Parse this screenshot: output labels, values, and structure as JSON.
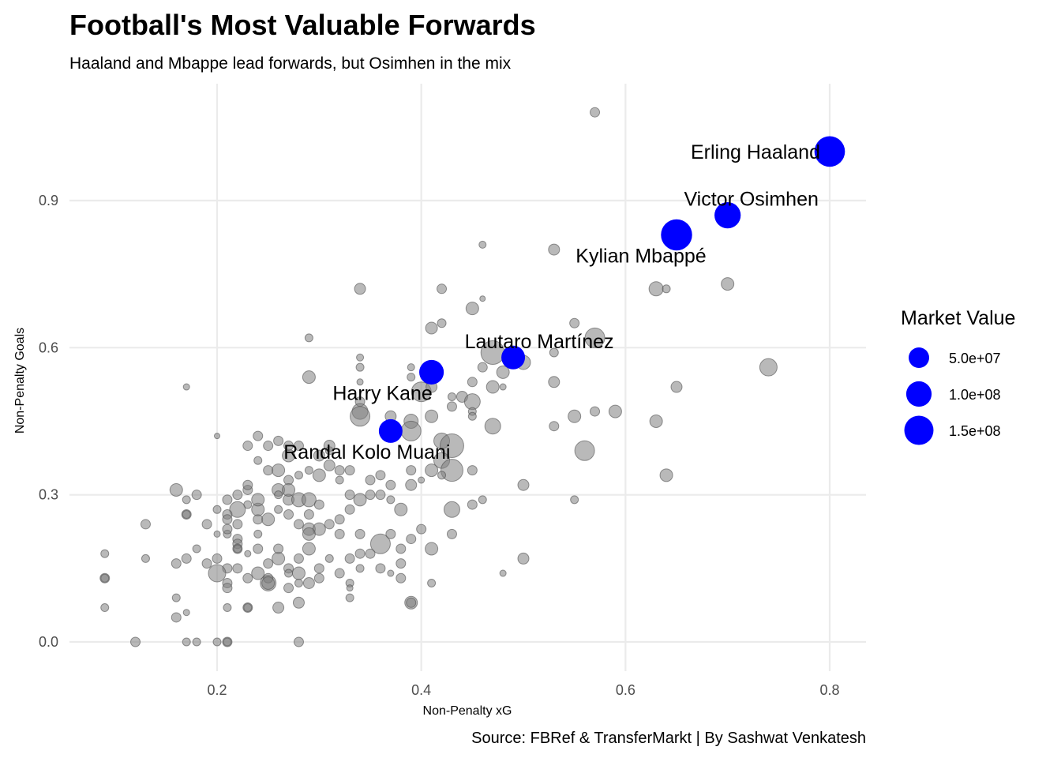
{
  "chart_data": {
    "type": "scatter",
    "title": "Football's Most Valuable Forwards",
    "subtitle": "Haaland and Mbappe lead forwards, but Osimhen in the mix",
    "caption": "Source: FBRef & TransferMarkt | By Sashwat Venkatesh",
    "xlabel": "Non-Penalty xG",
    "ylabel": "Non-Penalty Goals",
    "xlim": [
      0.06,
      0.84
    ],
    "ylim": [
      -0.07,
      1.1
    ],
    "x_ticks": [
      "0.2",
      "0.4",
      "0.6",
      "0.8"
    ],
    "y_ticks": [
      "0.0",
      "0.3",
      "0.6",
      "0.9"
    ],
    "grid": true,
    "legend": {
      "title": "Market Value",
      "position": "right",
      "entries": [
        {
          "label": "5.0e+07",
          "value": 50000000
        },
        {
          "label": "1.0e+08",
          "value": 100000000
        },
        {
          "label": "1.5e+08",
          "value": 150000000
        }
      ]
    },
    "colors": {
      "highlight": "#0000ff",
      "other": "#808080"
    },
    "highlighted": [
      {
        "name": "Erling Haaland",
        "x": 0.8,
        "y": 1.0,
        "value": 170000000
      },
      {
        "name": "Victor Osimhen",
        "x": 0.7,
        "y": 0.87,
        "value": 110000000
      },
      {
        "name": "Kylian Mbappé",
        "x": 0.65,
        "y": 0.83,
        "value": 180000000
      },
      {
        "name": "Lautaro Martínez",
        "x": 0.49,
        "y": 0.58,
        "value": 80000000
      },
      {
        "name": "Harry Kane",
        "x": 0.41,
        "y": 0.55,
        "value": 90000000
      },
      {
        "name": "Randal Kolo Muani",
        "x": 0.37,
        "y": 0.43,
        "value": 80000000
      }
    ],
    "others": [
      [
        0.57,
        1.08,
        12
      ],
      [
        0.46,
        0.81,
        9
      ],
      [
        0.53,
        0.8,
        14
      ],
      [
        0.34,
        0.72,
        14
      ],
      [
        0.42,
        0.72,
        12
      ],
      [
        0.45,
        0.68,
        16
      ],
      [
        0.46,
        0.7,
        7
      ],
      [
        0.41,
        0.64,
        15
      ],
      [
        0.42,
        0.65,
        11
      ],
      [
        0.55,
        0.65,
        12
      ],
      [
        0.57,
        0.62,
        25
      ],
      [
        0.63,
        0.72,
        18
      ],
      [
        0.64,
        0.72,
        10
      ],
      [
        0.7,
        0.73,
        16
      ],
      [
        0.29,
        0.62,
        10
      ],
      [
        0.34,
        0.58,
        9
      ],
      [
        0.34,
        0.56,
        10
      ],
      [
        0.39,
        0.56,
        9
      ],
      [
        0.39,
        0.54,
        10
      ],
      [
        0.47,
        0.59,
        30
      ],
      [
        0.48,
        0.55,
        16
      ],
      [
        0.5,
        0.57,
        18
      ],
      [
        0.53,
        0.59,
        11
      ],
      [
        0.46,
        0.56,
        12
      ],
      [
        0.48,
        0.52,
        8
      ],
      [
        0.45,
        0.53,
        12
      ],
      [
        0.47,
        0.52,
        16
      ],
      [
        0.53,
        0.53,
        14
      ],
      [
        0.65,
        0.52,
        14
      ],
      [
        0.74,
        0.56,
        22
      ],
      [
        0.29,
        0.54,
        16
      ],
      [
        0.34,
        0.53,
        8
      ],
      [
        0.4,
        0.51,
        25
      ],
      [
        0.41,
        0.52,
        14
      ],
      [
        0.43,
        0.5,
        10
      ],
      [
        0.44,
        0.5,
        14
      ],
      [
        0.45,
        0.49,
        20
      ],
      [
        0.43,
        0.48,
        12
      ],
      [
        0.34,
        0.49,
        12
      ],
      [
        0.34,
        0.47,
        20
      ],
      [
        0.34,
        0.46,
        25
      ],
      [
        0.37,
        0.46,
        14
      ],
      [
        0.39,
        0.45,
        18
      ],
      [
        0.41,
        0.46,
        16
      ],
      [
        0.39,
        0.43,
        25
      ],
      [
        0.42,
        0.41,
        20
      ],
      [
        0.43,
        0.4,
        30
      ],
      [
        0.42,
        0.37,
        20
      ],
      [
        0.43,
        0.35,
        28
      ],
      [
        0.41,
        0.35,
        16
      ],
      [
        0.42,
        0.34,
        10
      ],
      [
        0.4,
        0.33,
        8
      ],
      [
        0.45,
        0.47,
        10
      ],
      [
        0.45,
        0.46,
        10
      ],
      [
        0.47,
        0.44,
        20
      ],
      [
        0.53,
        0.44,
        12
      ],
      [
        0.55,
        0.46,
        16
      ],
      [
        0.57,
        0.47,
        12
      ],
      [
        0.59,
        0.47,
        16
      ],
      [
        0.63,
        0.45,
        16
      ],
      [
        0.56,
        0.39,
        25
      ],
      [
        0.64,
        0.34,
        16
      ],
      [
        0.5,
        0.32,
        14
      ],
      [
        0.55,
        0.29,
        10
      ],
      [
        0.46,
        0.29,
        10
      ],
      [
        0.45,
        0.28,
        12
      ],
      [
        0.45,
        0.35,
        12
      ],
      [
        0.43,
        0.27,
        20
      ],
      [
        0.39,
        0.35,
        12
      ],
      [
        0.39,
        0.32,
        14
      ],
      [
        0.38,
        0.27,
        16
      ],
      [
        0.37,
        0.29,
        10
      ],
      [
        0.37,
        0.32,
        12
      ],
      [
        0.36,
        0.34,
        12
      ],
      [
        0.36,
        0.3,
        12
      ],
      [
        0.35,
        0.3,
        12
      ],
      [
        0.35,
        0.33,
        12
      ],
      [
        0.34,
        0.29,
        16
      ],
      [
        0.33,
        0.35,
        12
      ],
      [
        0.33,
        0.3,
        12
      ],
      [
        0.31,
        0.39,
        10
      ],
      [
        0.31,
        0.4,
        14
      ],
      [
        0.31,
        0.36,
        14
      ],
      [
        0.3,
        0.38,
        14
      ],
      [
        0.32,
        0.35,
        12
      ],
      [
        0.32,
        0.33,
        10
      ],
      [
        0.3,
        0.34,
        16
      ],
      [
        0.29,
        0.35,
        10
      ],
      [
        0.28,
        0.34,
        10
      ],
      [
        0.28,
        0.4,
        12
      ],
      [
        0.27,
        0.38,
        16
      ],
      [
        0.27,
        0.4,
        12
      ],
      [
        0.26,
        0.41,
        12
      ],
      [
        0.25,
        0.4,
        12
      ],
      [
        0.24,
        0.42,
        12
      ],
      [
        0.23,
        0.4,
        12
      ],
      [
        0.24,
        0.37,
        10
      ],
      [
        0.25,
        0.35,
        12
      ],
      [
        0.26,
        0.35,
        16
      ],
      [
        0.27,
        0.33,
        12
      ],
      [
        0.27,
        0.29,
        14
      ],
      [
        0.26,
        0.27,
        10
      ],
      [
        0.26,
        0.31,
        16
      ],
      [
        0.27,
        0.31,
        16
      ],
      [
        0.28,
        0.29,
        18
      ],
      [
        0.29,
        0.29,
        18
      ],
      [
        0.3,
        0.28,
        12
      ],
      [
        0.29,
        0.26,
        12
      ],
      [
        0.27,
        0.26,
        12
      ],
      [
        0.28,
        0.24,
        12
      ],
      [
        0.29,
        0.23,
        16
      ],
      [
        0.3,
        0.23,
        16
      ],
      [
        0.31,
        0.24,
        12
      ],
      [
        0.32,
        0.22,
        12
      ],
      [
        0.32,
        0.25,
        12
      ],
      [
        0.33,
        0.27,
        12
      ],
      [
        0.34,
        0.22,
        12
      ],
      [
        0.36,
        0.2,
        25
      ],
      [
        0.35,
        0.18,
        12
      ],
      [
        0.37,
        0.22,
        12
      ],
      [
        0.38,
        0.19,
        12
      ],
      [
        0.39,
        0.21,
        12
      ],
      [
        0.4,
        0.23,
        12
      ],
      [
        0.41,
        0.19,
        16
      ],
      [
        0.43,
        0.22,
        12
      ],
      [
        0.38,
        0.16,
        12
      ],
      [
        0.36,
        0.15,
        12
      ],
      [
        0.39,
        0.08,
        16
      ],
      [
        0.39,
        0.08,
        12
      ],
      [
        0.34,
        0.18,
        12
      ],
      [
        0.34,
        0.15,
        10
      ],
      [
        0.33,
        0.17,
        12
      ],
      [
        0.33,
        0.12,
        10
      ],
      [
        0.33,
        0.11,
        8
      ],
      [
        0.33,
        0.09,
        10
      ],
      [
        0.32,
        0.14,
        12
      ],
      [
        0.31,
        0.17,
        10
      ],
      [
        0.3,
        0.15,
        12
      ],
      [
        0.29,
        0.19,
        16
      ],
      [
        0.29,
        0.22,
        16
      ],
      [
        0.28,
        0.17,
        12
      ],
      [
        0.28,
        0.14,
        16
      ],
      [
        0.28,
        0.12,
        10
      ],
      [
        0.28,
        0.08,
        14
      ],
      [
        0.27,
        0.15,
        12
      ],
      [
        0.26,
        0.17,
        16
      ],
      [
        0.26,
        0.19,
        12
      ],
      [
        0.25,
        0.16,
        12
      ],
      [
        0.25,
        0.12,
        20
      ],
      [
        0.24,
        0.14,
        16
      ],
      [
        0.24,
        0.19,
        12
      ],
      [
        0.24,
        0.22,
        10
      ],
      [
        0.24,
        0.25,
        12
      ],
      [
        0.25,
        0.25,
        16
      ],
      [
        0.24,
        0.27,
        16
      ],
      [
        0.24,
        0.29,
        16
      ],
      [
        0.23,
        0.28,
        10
      ],
      [
        0.23,
        0.31,
        12
      ],
      [
        0.23,
        0.32,
        12
      ],
      [
        0.22,
        0.3,
        12
      ],
      [
        0.22,
        0.27,
        20
      ],
      [
        0.22,
        0.24,
        12
      ],
      [
        0.22,
        0.21,
        12
      ],
      [
        0.21,
        0.22,
        10
      ],
      [
        0.22,
        0.2,
        12
      ],
      [
        0.22,
        0.19,
        12
      ],
      [
        0.22,
        0.19,
        10
      ],
      [
        0.21,
        0.29,
        12
      ],
      [
        0.21,
        0.26,
        12
      ],
      [
        0.21,
        0.25,
        12
      ],
      [
        0.21,
        0.23,
        12
      ],
      [
        0.22,
        0.15,
        12
      ],
      [
        0.21,
        0.15,
        12
      ],
      [
        0.21,
        0.12,
        12
      ],
      [
        0.21,
        0.11,
        12
      ],
      [
        0.21,
        0.07,
        10
      ],
      [
        0.2,
        0.14,
        22
      ],
      [
        0.2,
        0.17,
        12
      ],
      [
        0.2,
        0.22,
        8
      ],
      [
        0.2,
        0.27,
        10
      ],
      [
        0.19,
        0.16,
        12
      ],
      [
        0.19,
        0.24,
        12
      ],
      [
        0.18,
        0.3,
        12
      ],
      [
        0.18,
        0.19,
        10
      ],
      [
        0.17,
        0.29,
        10
      ],
      [
        0.17,
        0.26,
        12
      ],
      [
        0.17,
        0.26,
        10
      ],
      [
        0.17,
        0.17,
        12
      ],
      [
        0.17,
        0.06,
        8
      ],
      [
        0.17,
        0.0,
        10
      ],
      [
        0.18,
        0.0,
        10
      ],
      [
        0.16,
        0.31,
        16
      ],
      [
        0.16,
        0.16,
        12
      ],
      [
        0.16,
        0.09,
        10
      ],
      [
        0.16,
        0.05,
        12
      ],
      [
        0.17,
        0.52,
        8
      ],
      [
        0.2,
        0.42,
        7
      ],
      [
        0.12,
        0.0,
        12
      ],
      [
        0.21,
        0.0,
        12
      ],
      [
        0.21,
        0.0,
        10
      ],
      [
        0.2,
        0.0,
        10
      ],
      [
        0.23,
        0.07,
        12
      ],
      [
        0.23,
        0.07,
        10
      ],
      [
        0.23,
        0.13,
        12
      ],
      [
        0.25,
        0.13,
        12
      ],
      [
        0.25,
        0.12,
        16
      ],
      [
        0.26,
        0.07,
        14
      ],
      [
        0.27,
        0.11,
        12
      ],
      [
        0.27,
        0.14,
        10
      ],
      [
        0.28,
        0.0,
        12
      ],
      [
        0.29,
        0.12,
        14
      ],
      [
        0.3,
        0.13,
        12
      ],
      [
        0.13,
        0.24,
        12
      ],
      [
        0.13,
        0.17,
        10
      ],
      [
        0.09,
        0.18,
        10
      ],
      [
        0.09,
        0.13,
        12
      ],
      [
        0.09,
        0.13,
        10
      ],
      [
        0.09,
        0.07,
        10
      ],
      [
        0.38,
        0.13,
        12
      ],
      [
        0.37,
        0.14,
        8
      ],
      [
        0.41,
        0.12,
        10
      ],
      [
        0.48,
        0.14,
        8
      ],
      [
        0.5,
        0.17,
        14
      ],
      [
        0.23,
        0.18,
        8
      ],
      [
        0.26,
        0.3,
        10
      ]
    ]
  }
}
